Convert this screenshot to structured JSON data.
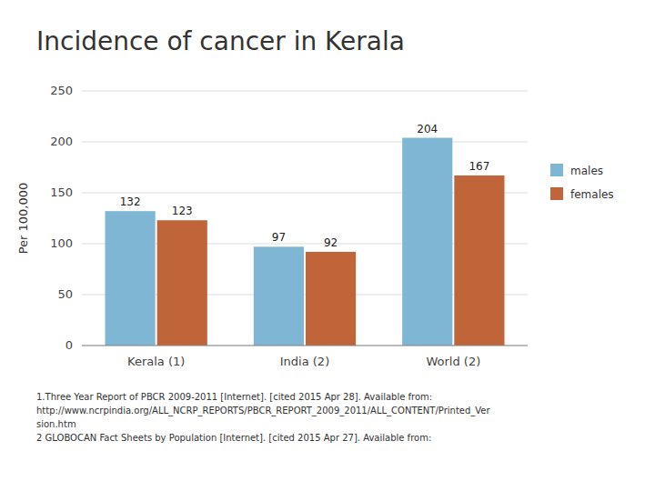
{
  "chart_data": {
    "type": "bar",
    "title": "Incidence of cancer in Kerala",
    "categories": [
      "Kerala (1)",
      "India (2)",
      "World (2)"
    ],
    "series": [
      {
        "name": "males",
        "color": "#7eb6d4",
        "values": [
          132,
          97,
          204
        ]
      },
      {
        "name": "females",
        "color": "#c0653a",
        "values": [
          123,
          92,
          167
        ]
      }
    ],
    "ylabel": "Per 100,000",
    "ylim": [
      0,
      250
    ],
    "yticks": [
      0,
      50,
      100,
      150,
      200,
      250
    ],
    "grid": true,
    "legend": "right",
    "data_labels": true,
    "annotations": [
      "1.Three Year Report of PBCR 2009-2011 [Internet]. [cited 2015 Apr 28]. Available from:",
      "http://www.ncrpindia.org/ALL_NCRP_REPORTS/PBCR_REPORT_2009_2011/ALL_CONTENT/Printed_Ver",
      "sion.htm",
      "2 GLOBOCAN Fact Sheets by Population [Internet]. [cited 2015 Apr 27]. Available from:"
    ]
  }
}
